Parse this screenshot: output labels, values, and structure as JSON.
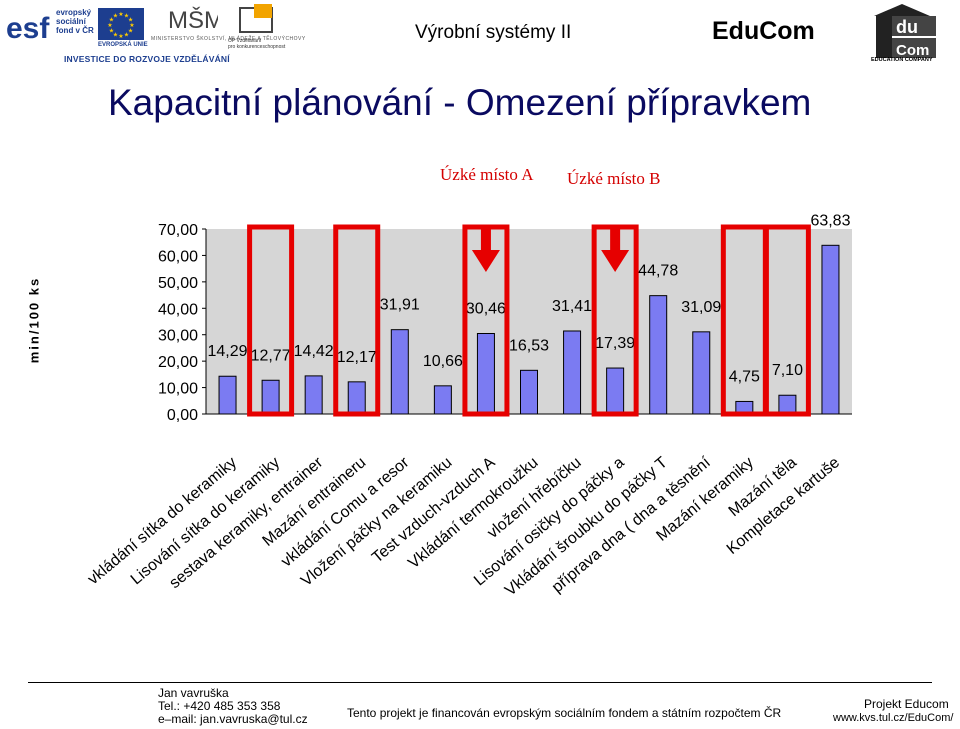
{
  "header": {
    "logos": {
      "esf_text_1": "evropský",
      "esf_text_2": "sociální",
      "esf_text_3": "fond v ČR",
      "eu_text": "EVROPSKÁ UNIE",
      "msmt_text": "MINISTERSTVO ŠKOLSTVÍ, MLÁDEŽE A TĚLOVÝCHOVY",
      "op_text_1": "OP Vzdělávání",
      "op_text_2": "pro konkurenceschopnost",
      "invest_text": "INVESTICE DO ROZVOJE VZDĚLÁVÁNÍ"
    },
    "course_title": "Výrobní systémy II",
    "brand": "EduCom",
    "edu_logo_caption": "EDUCATION COMPANY"
  },
  "slide_title": "Kapacitní plánování - Omezení přípravkem",
  "annotations": {
    "bottleneck_a": "Úzké místo A",
    "bottleneck_b": "Úzké místo B"
  },
  "colors": {
    "bar_fill": "#7b7bf2",
    "bar_stroke": "#000000",
    "plot_bg": "#d6d6d6",
    "highlight": "#e60000",
    "title": "#0a0a60"
  },
  "chart_data": {
    "type": "bar",
    "ylabel": "min/100 ks",
    "ylim": [
      0,
      70
    ],
    "yticks": [
      "0,00",
      "10,00",
      "20,00",
      "30,00",
      "40,00",
      "50,00",
      "60,00",
      "70,00"
    ],
    "grid": false,
    "categories": [
      "vkládání sítka do keramiky",
      "Lisování sítka do keramiky",
      "sestava keramiky, entraineru",
      "Mazání entraineru",
      "vkládání Comu a resortu",
      "Vložení páčky na keramiku",
      "Test vzduch-vzduch A",
      "Vkládání termokroužku",
      "vložení hřebíčku",
      "Lisování osičky do páčky a d",
      "Vkládání šroubku do páčky T",
      "příprava dna ( dna a těsnění",
      "Mazání keramiky",
      "Mazání těla",
      "Kompletace kartuše"
    ],
    "categories_shown": [
      "vkládání sítka do keramiky",
      "Lisování sítka do keramiky",
      "sestava keramiky, entrainer",
      "Mazání entraineru",
      "vkládání Comu a resor",
      "Vložení páčky na keramiku",
      "Test vzduch-vzduch A",
      "Vkládání termokroužku",
      "vložení hřebíčku",
      "Lisování osičky do páčky a",
      "Vkládání šroubku do páčky T",
      "příprava dna ( dna a těsnění",
      "Mazání keramiky",
      "Mazání těla",
      "Kompletace kartuše"
    ],
    "values": [
      14.29,
      12.77,
      14.42,
      12.17,
      31.91,
      10.66,
      30.46,
      16.53,
      31.41,
      17.39,
      44.78,
      31.09,
      4.75,
      7.1,
      63.83
    ],
    "value_labels": [
      "14,29",
      "12,77",
      "14,42",
      "12,17",
      "31,91",
      "10,66",
      "30,46",
      "16,53",
      "31,41",
      "17,39",
      "44,78",
      "31,09",
      "4,75",
      "7,10",
      "63,83"
    ],
    "highlighted_indices": [
      1,
      3,
      6,
      9,
      12,
      13
    ],
    "arrow_indices": [
      6,
      9
    ]
  },
  "footer": {
    "author_name": "Jan vavruška",
    "phone": "Tel.: +420 485 353 358",
    "email": "e–mail: jan.vavruska@tul.cz",
    "funding": "Tento projekt je financován evropským sociálním fondem a státním rozpočtem ČR",
    "project": "Projekt Educom",
    "url": "www.kvs.tul.cz/EduCom/"
  }
}
